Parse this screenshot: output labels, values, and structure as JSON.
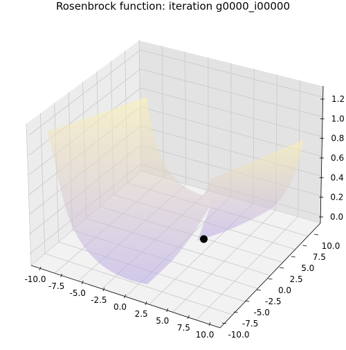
{
  "chart_data": {
    "type": "surface3d",
    "title": "Rosenbrock function: iteration g0000_i00000",
    "surface_colors": [
      "#b6a6e6",
      "#fff3b0"
    ],
    "surface_opacity": 0.55,
    "marker_color": "#000000",
    "x_axis": {
      "ticks": [
        "-10.0",
        "-7.5",
        "-5.0",
        "-2.5",
        "0.0",
        "2.5",
        "5.0",
        "7.5",
        "10.0"
      ],
      "range": [
        -10,
        10
      ]
    },
    "y_axis": {
      "ticks": [
        "-10.0",
        "-7.5",
        "-5.0",
        "-2.5",
        "0.0",
        "2.5",
        "5.0",
        "7.5",
        "10.0"
      ],
      "range": [
        -10,
        10
      ]
    },
    "z_axis": {
      "ticks": [
        "0.0",
        "0.2",
        "0.4",
        "0.6",
        "0.8",
        "1.0",
        "1.2"
      ],
      "range": [
        0,
        1.2
      ]
    },
    "marker_point": {
      "x": 2.5,
      "y": 0.5,
      "z": 0.0
    },
    "grid": true
  }
}
